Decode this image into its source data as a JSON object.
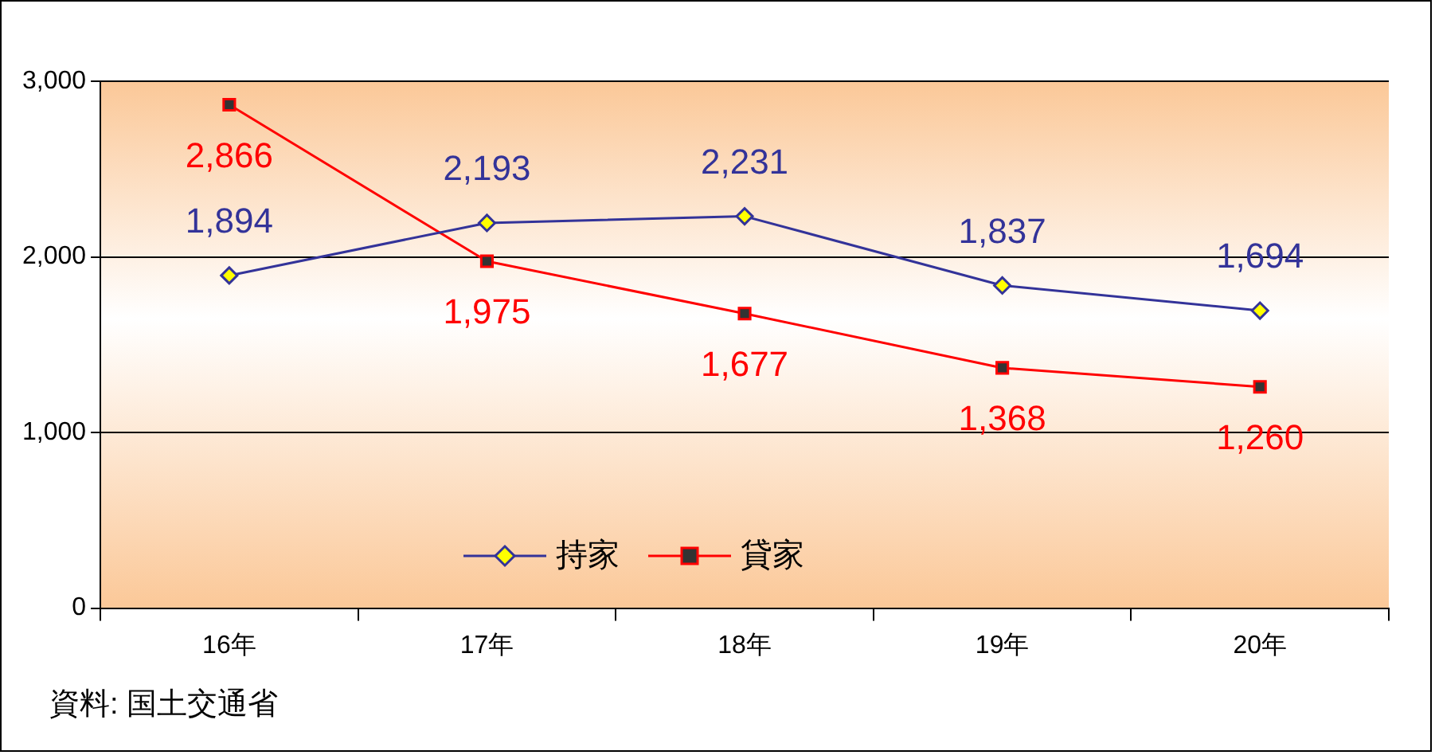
{
  "chart_data": {
    "type": "line",
    "categories": [
      "16年",
      "17年",
      "18年",
      "19年",
      "20年"
    ],
    "series": [
      {
        "name": "持家",
        "color": "#333399",
        "marker": "diamond",
        "values": [
          1894,
          2193,
          2231,
          1837,
          1694
        ],
        "value_labels": [
          "1,894",
          "2,193",
          "2,231",
          "1,837",
          "1,694"
        ]
      },
      {
        "name": "貸家",
        "color": "#ff0000",
        "marker": "square",
        "values": [
          2866,
          1975,
          1677,
          1368,
          1260
        ],
        "value_labels": [
          "2,866",
          "1,975",
          "1,677",
          "1,368",
          "1,260"
        ]
      }
    ],
    "ylim": [
      0,
      3000
    ],
    "yticks": [
      {
        "value": 0,
        "label": "0"
      },
      {
        "value": 1000,
        "label": "1,000"
      },
      {
        "value": 2000,
        "label": "2,000"
      },
      {
        "value": 3000,
        "label": "3,000"
      }
    ],
    "grid": "y",
    "legend": "bottom",
    "annotations": [
      "資料: 国土交通省"
    ]
  }
}
